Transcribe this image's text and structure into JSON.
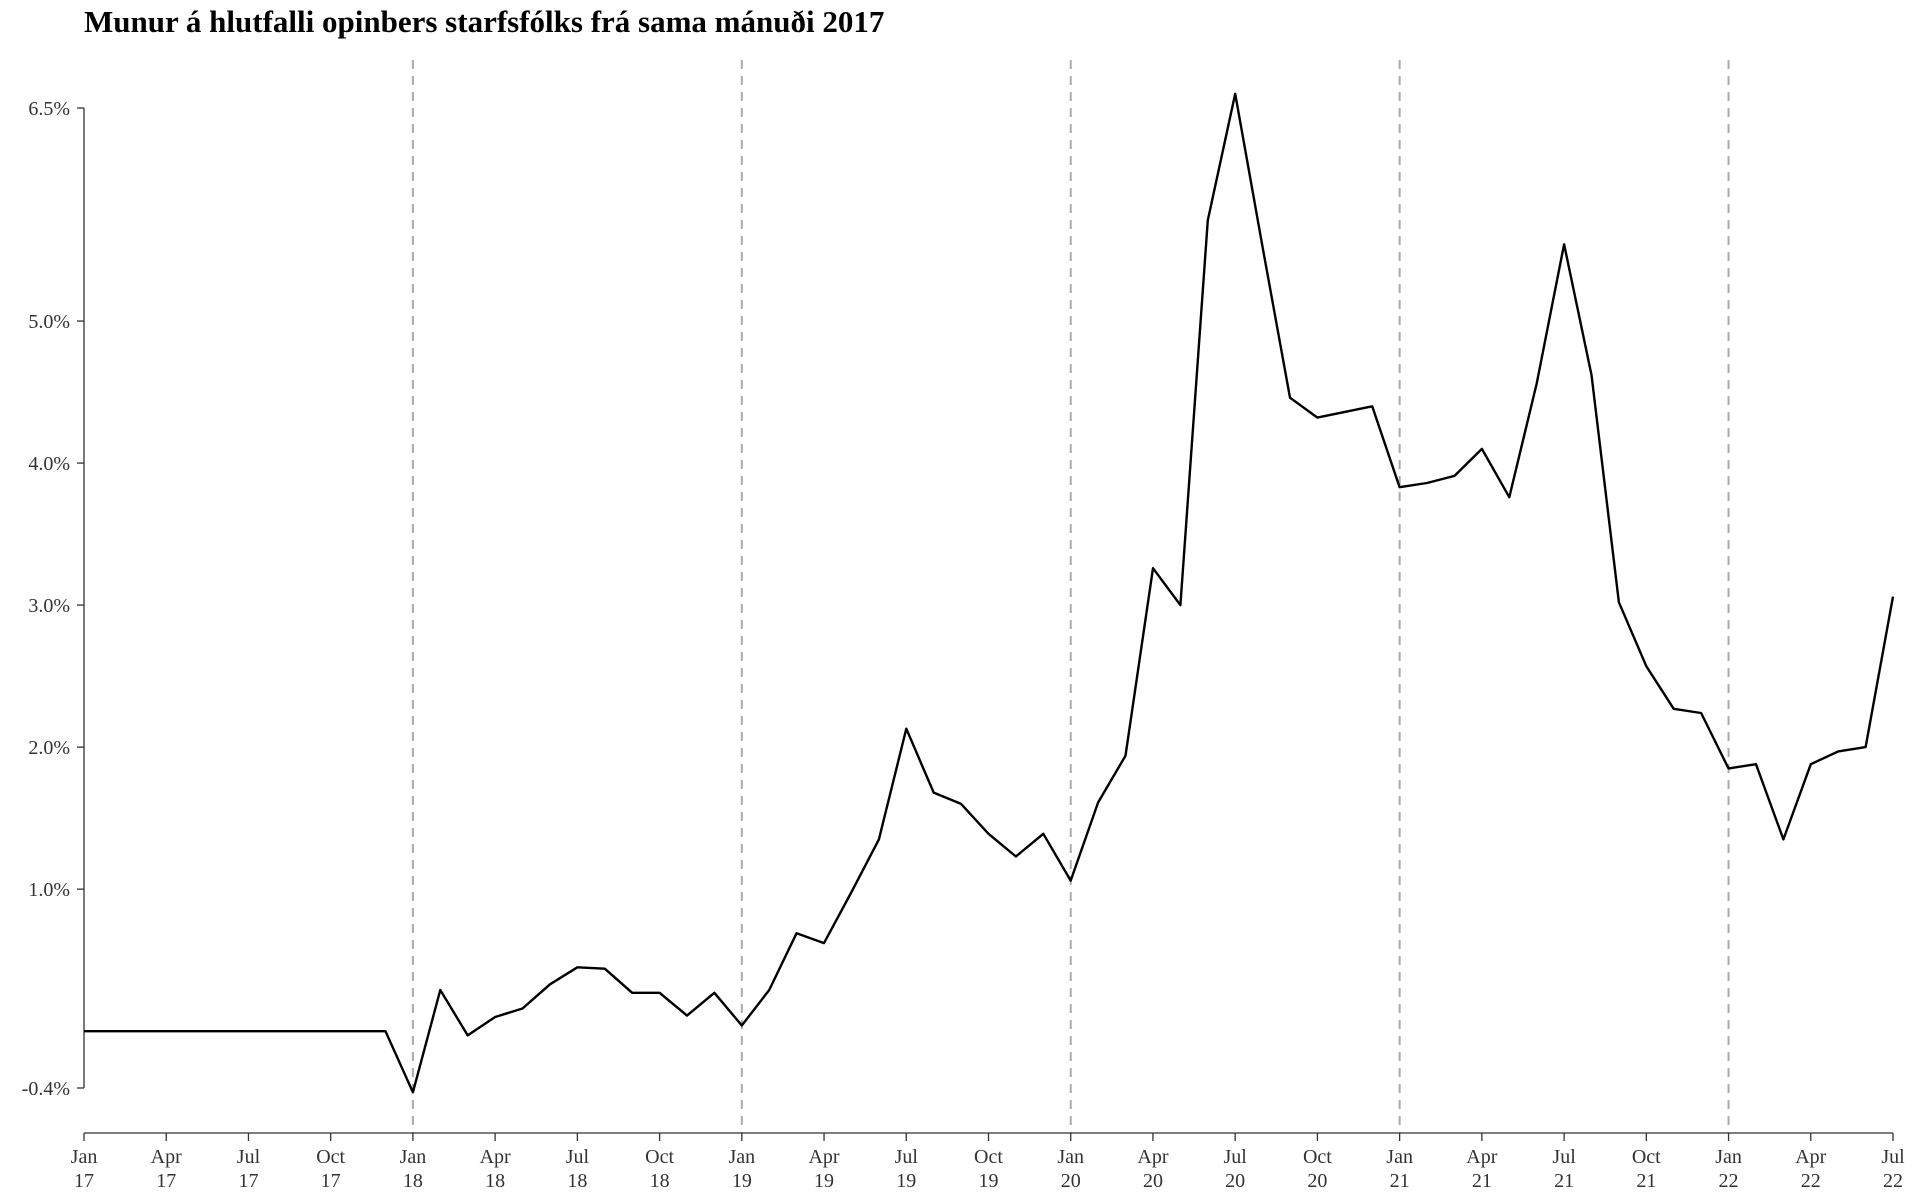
{
  "chart_data": {
    "type": "line",
    "title": "Munur á hlutfalli opinbers starfsfólks frá sama mánuði 2017",
    "xlabel": "",
    "ylabel": "",
    "start": "2017-01",
    "x_ticks": [
      {
        "month": "2017-01",
        "line1": "Jan",
        "line2": "17"
      },
      {
        "month": "2017-04",
        "line1": "Apr",
        "line2": "17"
      },
      {
        "month": "2017-07",
        "line1": "Jul",
        "line2": "17"
      },
      {
        "month": "2017-10",
        "line1": "Oct",
        "line2": "17"
      },
      {
        "month": "2018-01",
        "line1": "Jan",
        "line2": "18"
      },
      {
        "month": "2018-04",
        "line1": "Apr",
        "line2": "18"
      },
      {
        "month": "2018-07",
        "line1": "Jul",
        "line2": "18"
      },
      {
        "month": "2018-10",
        "line1": "Oct",
        "line2": "18"
      },
      {
        "month": "2019-01",
        "line1": "Jan",
        "line2": "19"
      },
      {
        "month": "2019-04",
        "line1": "Apr",
        "line2": "19"
      },
      {
        "month": "2019-07",
        "line1": "Jul",
        "line2": "19"
      },
      {
        "month": "2019-10",
        "line1": "Oct",
        "line2": "19"
      },
      {
        "month": "2020-01",
        "line1": "Jan",
        "line2": "20"
      },
      {
        "month": "2020-04",
        "line1": "Apr",
        "line2": "20"
      },
      {
        "month": "2020-07",
        "line1": "Jul",
        "line2": "20"
      },
      {
        "month": "2020-10",
        "line1": "Oct",
        "line2": "20"
      },
      {
        "month": "2021-01",
        "line1": "Jan",
        "line2": "21"
      },
      {
        "month": "2021-04",
        "line1": "Apr",
        "line2": "21"
      },
      {
        "month": "2021-07",
        "line1": "Jul",
        "line2": "21"
      },
      {
        "month": "2021-10",
        "line1": "Oct",
        "line2": "21"
      },
      {
        "month": "2022-01",
        "line1": "Jan",
        "line2": "22"
      },
      {
        "month": "2022-04",
        "line1": "Apr",
        "line2": "22"
      },
      {
        "month": "2022-07",
        "line1": "Jul",
        "line2": "22"
      }
    ],
    "y_ticks": [
      {
        "value": -0.4,
        "label": "-0.4%"
      },
      {
        "value": 1.0,
        "label": "1.0%"
      },
      {
        "value": 2.0,
        "label": "2.0%"
      },
      {
        "value": 3.0,
        "label": "3.0%"
      },
      {
        "value": 4.0,
        "label": "4.0%"
      },
      {
        "value": 5.0,
        "label": "5.0%"
      },
      {
        "value": 6.5,
        "label": "6.5%"
      }
    ],
    "year_marker_lines": [
      "2018-01",
      "2019-01",
      "2020-01",
      "2021-01",
      "2022-01"
    ],
    "xlim": [
      "2017-01",
      "2022-07"
    ],
    "ylim": [
      -0.4,
      6.5
    ],
    "grid": false,
    "legend": "none",
    "colors": {
      "line": "#000000",
      "year_markers": "#aaaaaa",
      "text": "#333333"
    },
    "series": [
      {
        "values": [
          [
            "2017-01",
            0.0
          ],
          [
            "2017-02",
            0.0
          ],
          [
            "2017-03",
            0.0
          ],
          [
            "2017-04",
            0.0
          ],
          [
            "2017-05",
            0.0
          ],
          [
            "2017-06",
            0.0
          ],
          [
            "2017-07",
            0.0
          ],
          [
            "2017-08",
            0.0
          ],
          [
            "2017-09",
            0.0
          ],
          [
            "2017-10",
            0.0
          ],
          [
            "2017-11",
            0.0
          ],
          [
            "2017-12",
            0.0
          ],
          [
            "2018-01",
            -0.43
          ],
          [
            "2018-02",
            0.29
          ],
          [
            "2018-03",
            -0.03
          ],
          [
            "2018-04",
            0.1
          ],
          [
            "2018-05",
            0.16
          ],
          [
            "2018-06",
            0.33
          ],
          [
            "2018-07",
            0.45
          ],
          [
            "2018-08",
            0.44
          ],
          [
            "2018-09",
            0.27
          ],
          [
            "2018-10",
            0.27
          ],
          [
            "2018-11",
            0.11
          ],
          [
            "2018-12",
            0.27
          ],
          [
            "2019-01",
            0.04
          ],
          [
            "2019-02",
            0.29
          ],
          [
            "2019-03",
            0.69
          ],
          [
            "2019-04",
            0.62
          ],
          [
            "2019-05",
            0.98
          ],
          [
            "2019-06",
            1.35
          ],
          [
            "2019-07",
            2.13
          ],
          [
            "2019-08",
            1.68
          ],
          [
            "2019-09",
            1.6
          ],
          [
            "2019-10",
            1.39
          ],
          [
            "2019-11",
            1.23
          ],
          [
            "2019-12",
            1.39
          ],
          [
            "2020-01",
            1.06
          ],
          [
            "2020-02",
            1.61
          ],
          [
            "2020-03",
            1.94
          ],
          [
            "2020-04",
            3.26
          ],
          [
            "2020-05",
            3.0
          ],
          [
            "2020-06",
            5.71
          ],
          [
            "2020-07",
            6.6
          ],
          [
            "2020-08",
            5.52
          ],
          [
            "2020-09",
            4.46
          ],
          [
            "2020-10",
            4.32
          ],
          [
            "2020-11",
            4.36
          ],
          [
            "2020-12",
            4.4
          ],
          [
            "2021-01",
            3.83
          ],
          [
            "2021-02",
            3.86
          ],
          [
            "2021-03",
            3.91
          ],
          [
            "2021-04",
            4.1
          ],
          [
            "2021-05",
            3.76
          ],
          [
            "2021-06",
            4.56
          ],
          [
            "2021-07",
            5.54
          ],
          [
            "2021-08",
            4.62
          ],
          [
            "2021-09",
            3.02
          ],
          [
            "2021-10",
            2.57
          ],
          [
            "2021-11",
            2.27
          ],
          [
            "2021-12",
            2.24
          ],
          [
            "2022-01",
            1.85
          ],
          [
            "2022-02",
            1.88
          ],
          [
            "2022-03",
            1.35
          ],
          [
            "2022-04",
            1.88
          ],
          [
            "2022-05",
            1.97
          ],
          [
            "2022-06",
            2.0
          ],
          [
            "2022-07",
            3.06
          ]
        ]
      }
    ]
  }
}
